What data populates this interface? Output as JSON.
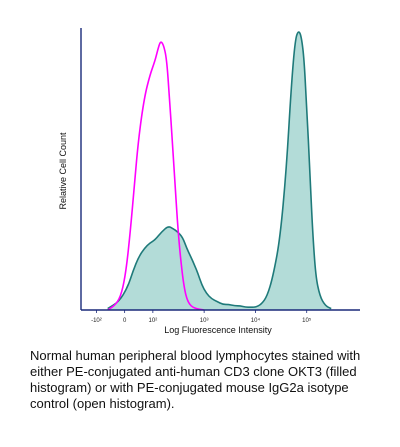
{
  "chart_data": {
    "type": "area",
    "xlabel": "Log Fluorescence Intensity",
    "ylabel": "Relative Cell Count",
    "x_scale": "log",
    "xlim": [
      -200,
      1000000
    ],
    "ylim": [
      0,
      100
    ],
    "grid": false,
    "legend": "none",
    "x_ticks": [
      {
        "value": -100,
        "label": "-10²"
      },
      {
        "value": 0,
        "label": "0"
      },
      {
        "value": 100,
        "label": "10²"
      },
      {
        "value": 1000,
        "label": "10³"
      },
      {
        "value": 10000,
        "label": "10⁴"
      },
      {
        "value": 100000,
        "label": "10⁵"
      }
    ],
    "series": [
      {
        "style": "filled histogram",
        "color": "#1f7a7a",
        "fill": "#b3dcd8",
        "x": [
          -60,
          -20,
          10,
          30,
          50,
          70,
          90,
          110,
          150,
          200,
          250,
          300,
          380,
          460,
          550,
          650,
          760,
          900,
          1100,
          1400,
          1800,
          2300,
          3000,
          4000,
          5000,
          6500,
          8000,
          10000,
          13000,
          17000,
          22000,
          30000,
          40000,
          50000,
          60000,
          70000,
          80000,
          90000,
          100000,
          115000,
          130000,
          150000,
          180000,
          230000,
          300000
        ],
        "y": [
          0.5,
          3,
          8,
          14,
          19,
          22,
          24,
          25,
          28,
          30,
          29,
          28,
          26,
          22,
          19,
          16,
          13,
          9,
          6,
          4,
          3,
          2,
          2,
          1.5,
          1.5,
          1,
          1,
          1,
          2,
          5,
          12,
          25,
          50,
          80,
          97,
          100,
          97,
          88,
          72,
          50,
          28,
          12,
          5,
          1.5,
          0.5
        ]
      },
      {
        "style": "open histogram",
        "color": "#ff00ff",
        "x": [
          -60,
          -30,
          -10,
          5,
          20,
          35,
          50,
          70,
          90,
          110,
          125,
          140,
          160,
          185,
          210,
          240,
          270,
          300,
          340,
          380,
          420,
          460,
          520,
          600,
          700,
          850,
          1000
        ],
        "y": [
          0,
          2,
          6,
          14,
          28,
          45,
          62,
          76,
          84,
          89,
          93,
          96,
          95,
          90,
          76,
          60,
          45,
          32,
          20,
          12,
          7,
          4,
          2,
          1,
          0.5,
          0.2,
          0
        ]
      }
    ]
  },
  "caption": "Normal human peripheral blood lymphocytes stained with either PE-conjugated anti-human CD3 clone OKT3 (filled histogram) or with PE-conjugated mouse IgG2a isotype control (open histogram)."
}
